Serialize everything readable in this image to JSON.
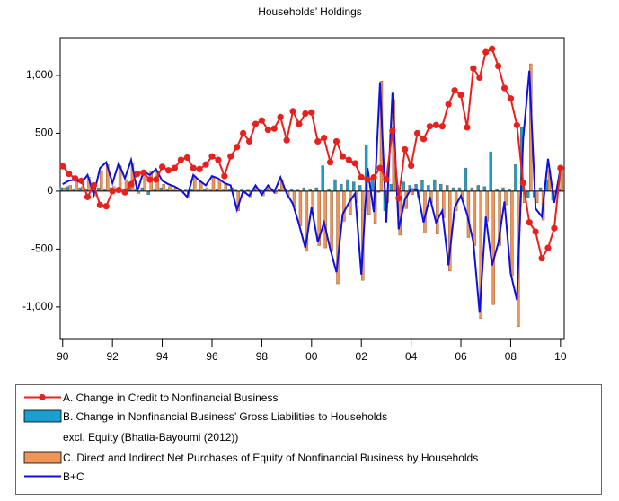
{
  "chart_data": {
    "type": "combo",
    "title": "Households’ Holdings",
    "x": [
      1990,
      1990.25,
      1990.5,
      1990.75,
      1991,
      1991.25,
      1991.5,
      1991.75,
      1992,
      1992.25,
      1992.5,
      1992.75,
      1993,
      1993.25,
      1993.5,
      1993.75,
      1994,
      1994.25,
      1994.5,
      1994.75,
      1995,
      1995.25,
      1995.5,
      1995.75,
      1996,
      1996.25,
      1996.5,
      1996.75,
      1997,
      1997.25,
      1997.5,
      1997.75,
      1998,
      1998.25,
      1998.5,
      1998.75,
      1999,
      1999.25,
      1999.5,
      1999.75,
      2000,
      2000.25,
      2000.5,
      2000.75,
      2001,
      2001.25,
      2001.5,
      2001.75,
      2002,
      2002.25,
      2002.5,
      2002.75,
      2003,
      2003.25,
      2003.5,
      2003.75,
      2004,
      2004.25,
      2004.5,
      2004.75,
      2005,
      2005.25,
      2005.5,
      2005.75,
      2006,
      2006.25,
      2006.5,
      2006.75,
      2007,
      2007.25,
      2007.5,
      2007.75,
      2008,
      2008.25,
      2008.5,
      2008.75,
      2009,
      2009.25,
      2009.5,
      2009.75,
      2010
    ],
    "series": [
      {
        "name": "A. Change in Credit to Nonfinancial Business",
        "kind": "line-marker",
        "color": "#e8201e",
        "values": [
          215,
          150,
          110,
          90,
          -50,
          50,
          -120,
          -130,
          0,
          10,
          -10,
          60,
          150,
          160,
          100,
          100,
          210,
          180,
          200,
          270,
          290,
          200,
          190,
          230,
          300,
          270,
          130,
          300,
          380,
          500,
          430,
          580,
          610,
          530,
          540,
          640,
          440,
          690,
          580,
          670,
          680,
          430,
          460,
          250,
          430,
          300,
          270,
          240,
          120,
          100,
          120,
          200,
          100,
          520,
          -60,
          360,
          220,
          500,
          450,
          560,
          570,
          560,
          750,
          870,
          830,
          550,
          1060,
          980,
          1200,
          1230,
          1080,
          890,
          800,
          570,
          70,
          -270,
          -350,
          -580,
          -490,
          -320,
          200
        ]
      },
      {
        "name": "B. Change in Nonfinancial Business’ Gross Liabilities to Households\nexcl. Equity (Bhatia-Bayoumi (2012))",
        "kind": "bar",
        "color": "#1a9fd0",
        "values": [
          30,
          40,
          20,
          30,
          20,
          10,
          30,
          20,
          30,
          20,
          10,
          30,
          20,
          30,
          -30,
          20,
          30,
          20,
          10,
          20,
          10,
          20,
          10,
          20,
          10,
          20,
          10,
          20,
          10,
          20,
          10,
          20,
          10,
          20,
          10,
          20,
          20,
          20,
          10,
          30,
          20,
          30,
          220,
          20,
          100,
          60,
          100,
          80,
          50,
          400,
          100,
          -10,
          -170,
          60,
          50,
          80,
          50,
          60,
          90,
          50,
          100,
          60,
          50,
          30,
          30,
          200,
          30,
          50,
          40,
          340,
          20,
          30,
          20,
          230,
          550,
          -60,
          -50,
          30,
          100,
          -80,
          20
        ]
      },
      {
        "name": "C. Direct and Indirect Net Purchases of Equity of Nonfinancial Business by Households",
        "kind": "bar",
        "color": "#f0955a",
        "values": [
          30,
          50,
          80,
          40,
          120,
          -40,
          170,
          230,
          40,
          220,
          100,
          240,
          -20,
          140,
          170,
          170,
          60,
          40,
          30,
          -10,
          -60,
          120,
          80,
          30,
          120,
          90,
          60,
          30,
          -170,
          -20,
          -50,
          30,
          -40,
          30,
          -20,
          100,
          -40,
          -130,
          -300,
          -520,
          -160,
          -470,
          -490,
          -520,
          -800,
          -260,
          -200,
          -100,
          -770,
          -200,
          -280,
          950,
          -100,
          790,
          -380,
          -150,
          -30,
          -50,
          -360,
          -100,
          -370,
          -230,
          -690,
          -170,
          -70,
          -400,
          -470,
          -1100,
          -260,
          -980,
          -470,
          -120,
          -730,
          -1170,
          -100,
          1100,
          -100,
          -250,
          180,
          -20,
          180
        ]
      },
      {
        "name": "B+C",
        "kind": "line",
        "color": "#1010dd",
        "values": [
          60,
          90,
          100,
          70,
          140,
          -30,
          200,
          250,
          70,
          240,
          110,
          270,
          0,
          170,
          140,
          190,
          90,
          60,
          40,
          10,
          -50,
          140,
          90,
          50,
          130,
          110,
          70,
          50,
          -160,
          0,
          -40,
          50,
          -30,
          50,
          -10,
          120,
          -20,
          -110,
          -290,
          -490,
          -140,
          -440,
          -270,
          -500,
          -700,
          -200,
          -100,
          -20,
          -720,
          200,
          -180,
          940,
          -270,
          850,
          -330,
          -70,
          20,
          10,
          -270,
          -50,
          -270,
          -170,
          -640,
          -140,
          -40,
          -200,
          -440,
          -1050,
          -220,
          -640,
          -450,
          -90,
          -710,
          -940,
          450,
          1040,
          -150,
          -220,
          280,
          -100,
          200
        ]
      }
    ],
    "xlim": [
      1989.9,
      2010.15
    ],
    "xticks": [
      {
        "value": 1990,
        "label": "90"
      },
      {
        "value": 1992,
        "label": "92"
      },
      {
        "value": 1994,
        "label": "94"
      },
      {
        "value": 1996,
        "label": "96"
      },
      {
        "value": 1998,
        "label": "98"
      },
      {
        "value": 2000,
        "label": "00"
      },
      {
        "value": 2002,
        "label": "02"
      },
      {
        "value": 2004,
        "label": "04"
      },
      {
        "value": 2006,
        "label": "06"
      },
      {
        "value": 2008,
        "label": "08"
      },
      {
        "value": 2010,
        "label": "10"
      }
    ],
    "ylim": [
      -1280,
      1325
    ],
    "yticks": [
      {
        "value": -1000,
        "label": "-1,000"
      },
      -500,
      0,
      500,
      {
        "value": 1000,
        "label": "1,000"
      }
    ],
    "grid": false
  }
}
